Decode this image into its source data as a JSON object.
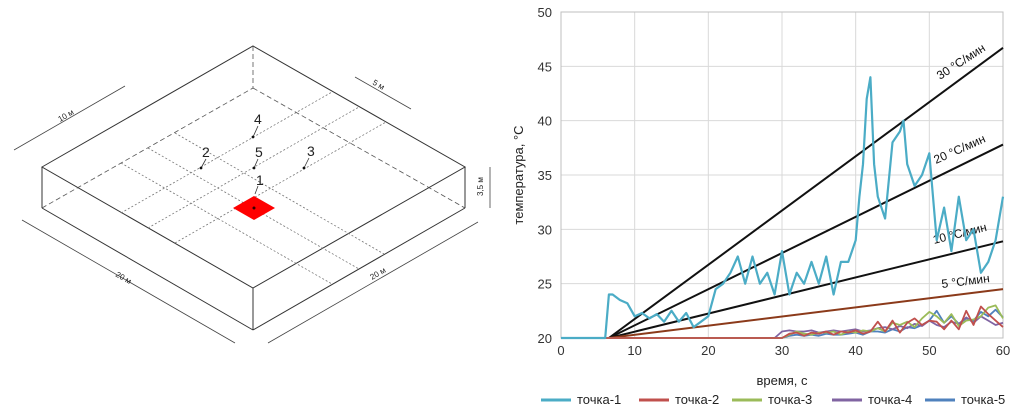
{
  "diagram": {
    "dim_top": "10 м",
    "dim_right_top": "5 м",
    "dim_height": "3,5 м",
    "dim_left": "20 м",
    "dim_right": "20 м",
    "points": [
      "1",
      "2",
      "3",
      "4",
      "5"
    ],
    "source_color": "#ff0000"
  },
  "chart_data": {
    "type": "line",
    "xlabel": "время, с",
    "ylabel": "температура, °C",
    "xlim": [
      0,
      60
    ],
    "ylim": [
      20,
      50
    ],
    "xticks": [
      0,
      10,
      20,
      30,
      40,
      50,
      60
    ],
    "yticks": [
      20,
      25,
      30,
      35,
      40,
      45,
      50
    ],
    "grid": true,
    "legend_position": "bottom",
    "rate_lines": [
      {
        "label": "30 °C/мин",
        "color": "#111111",
        "x": [
          6.5,
          60
        ],
        "y": [
          20,
          46.7
        ]
      },
      {
        "label": "20 °C/мин",
        "color": "#111111",
        "x": [
          6.5,
          60
        ],
        "y": [
          20,
          37.8
        ]
      },
      {
        "label": "10 °C/мин",
        "color": "#111111",
        "x": [
          6.5,
          60
        ],
        "y": [
          20,
          28.9
        ]
      },
      {
        "label": "5 °C/мин",
        "color": "#8b3a1a",
        "x": [
          6.5,
          60
        ],
        "y": [
          20,
          24.5
        ]
      }
    ],
    "series": [
      {
        "name": "точка-1",
        "color": "#4bacc6",
        "x": [
          0,
          6,
          6.5,
          7,
          8,
          9,
          10,
          11,
          12,
          13,
          14,
          15,
          16,
          17,
          18,
          19,
          20,
          21,
          22,
          23,
          24,
          25,
          26,
          27,
          28,
          29,
          30,
          31,
          32,
          33,
          34,
          35,
          36,
          37,
          38,
          39,
          40,
          40.5,
          41,
          41.5,
          42,
          42.5,
          43,
          44,
          45,
          46,
          46.5,
          47,
          48,
          49,
          50,
          51,
          52,
          53,
          54,
          55,
          56,
          57,
          58,
          59,
          60
        ],
        "y": [
          20,
          20,
          24,
          24,
          23.5,
          23.2,
          22,
          22.3,
          21.8,
          22.2,
          21.5,
          22.5,
          21.5,
          22.3,
          21,
          21.5,
          22,
          24.5,
          25,
          26,
          27.5,
          25,
          27.5,
          25,
          26,
          24,
          28,
          24,
          26,
          25,
          27,
          25,
          27.5,
          24,
          27,
          27,
          29,
          33,
          36,
          42,
          44,
          36,
          33,
          31,
          38,
          39,
          40,
          36,
          34,
          35,
          37,
          29,
          32,
          28,
          33,
          29,
          30,
          26,
          27,
          29,
          33
        ]
      },
      {
        "name": "точка-2",
        "color": "#c0504d",
        "x": [
          0,
          30,
          31,
          32,
          33,
          34,
          35,
          36,
          37,
          38,
          39,
          40,
          41,
          42,
          43,
          44,
          45,
          46,
          47,
          48,
          49,
          50,
          51,
          52,
          53,
          54,
          55,
          56,
          57,
          58,
          59,
          60
        ],
        "y": [
          20,
          20,
          20.4,
          20.5,
          20.2,
          20.5,
          20.4,
          20.6,
          20.3,
          20.6,
          20.5,
          20.7,
          20.4,
          20.6,
          21.5,
          20.6,
          21.6,
          20.5,
          21.4,
          21.8,
          21.2,
          21.6,
          21.5,
          20.8,
          21.6,
          20.8,
          22.5,
          21.2,
          22.9,
          22.2,
          21.6,
          21.0
        ]
      },
      {
        "name": "точка-3",
        "color": "#9bbb59",
        "x": [
          0,
          30,
          31,
          32,
          33,
          34,
          35,
          36,
          37,
          38,
          39,
          40,
          41,
          42,
          43,
          44,
          45,
          46,
          47,
          48,
          49,
          50,
          51,
          52,
          53,
          54,
          55,
          56,
          57,
          58,
          59,
          60
        ],
        "y": [
          20,
          20,
          20.3,
          20.6,
          20.4,
          20.3,
          20.5,
          20.5,
          20.6,
          20.3,
          20.6,
          20.5,
          20.7,
          20.6,
          20.9,
          20.6,
          21.4,
          21.2,
          21.5,
          21.0,
          21.8,
          22.4,
          22.0,
          21.4,
          22.2,
          21.1,
          21.6,
          21.7,
          22.0,
          22.8,
          23.0,
          21.8
        ]
      },
      {
        "name": "точка-4",
        "color": "#8064a2",
        "x": [
          0,
          29,
          30,
          31,
          32,
          33,
          34,
          35,
          36,
          37,
          38,
          39,
          40,
          41,
          42,
          43,
          44,
          45,
          46,
          47,
          48,
          49,
          50,
          51,
          52,
          53,
          54,
          55,
          56,
          57,
          58,
          59,
          60
        ],
        "y": [
          20,
          20,
          20.6,
          20.7,
          20.6,
          20.6,
          20.7,
          20.5,
          20.6,
          20.7,
          20.6,
          20.7,
          20.8,
          20.6,
          20.7,
          20.9,
          21.0,
          20.8,
          21.1,
          20.9,
          21.3,
          21.1,
          21.6,
          21.2,
          21.0,
          21.5,
          21.3,
          21.9,
          21.4,
          22.0,
          21.6,
          21.2,
          21.4
        ]
      },
      {
        "name": "точка-5",
        "color": "#4f81bd",
        "x": [
          0,
          30,
          31,
          32,
          33,
          34,
          35,
          36,
          37,
          38,
          39,
          40,
          41,
          42,
          43,
          44,
          45,
          46,
          47,
          48,
          49,
          50,
          51,
          52,
          53,
          54,
          55,
          56,
          57,
          58,
          59,
          60
        ],
        "y": [
          20,
          20,
          20.2,
          20.3,
          20.2,
          20.3,
          20.2,
          20.4,
          20.3,
          20.3,
          20.4,
          20.5,
          20.3,
          20.6,
          20.6,
          20.5,
          20.8,
          20.6,
          21.0,
          20.9,
          21.2,
          21.6,
          22.5,
          21.4,
          22.0,
          21.3,
          21.8,
          21.6,
          22.4,
          22.0,
          22.6,
          21.9
        ]
      }
    ]
  }
}
